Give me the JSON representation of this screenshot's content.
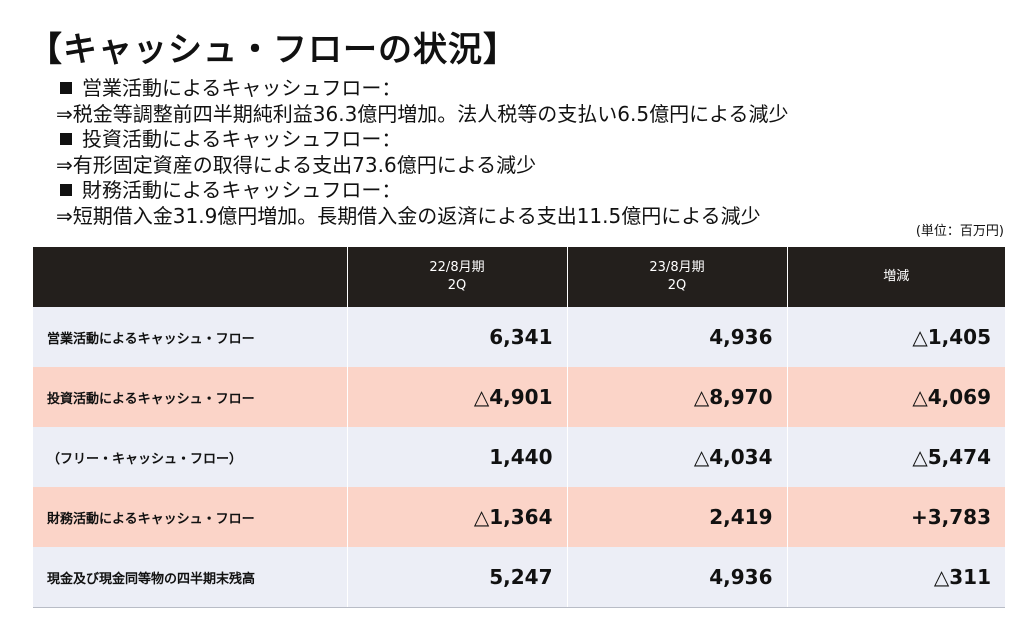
{
  "title": "【キャッシュ・フローの状況】",
  "sections": [
    {
      "heading": "営業活動によるキャッシュフロー：",
      "detail": "⇒税金等調整前四半期純利益36.3億円増加。法人税等の支払い6.5億円による減少"
    },
    {
      "heading": "投資活動によるキャッシュフロー：",
      "detail": "⇒有形固定資産の取得による支出73.6億円による減少"
    },
    {
      "heading": "財務活動によるキャッシュフロー：",
      "detail": "⇒短期借入金31.9億円増加。長期借入金の返済による支出11.5億円による減少"
    }
  ],
  "unit": "(単位：百万円)",
  "table": {
    "headers": [
      {
        "line1": "",
        "line2": ""
      },
      {
        "line1": "22/8月期",
        "line2": "2Q"
      },
      {
        "line1": "23/8月期",
        "line2": "2Q"
      },
      {
        "line1": "増減",
        "line2": ""
      }
    ],
    "rows": [
      {
        "label": "営業活動によるキャッシュ・フロー",
        "v1": "6,341",
        "v2": "4,936",
        "diff": "△1,405"
      },
      {
        "label": "投資活動によるキャッシュ・フロー",
        "v1": "△4,901",
        "v2": "△8,970",
        "diff": "△4,069"
      },
      {
        "label": "（フリー・キャッシュ・フロー）",
        "v1": "1,440",
        "v2": "△4,034",
        "diff": "△5,474"
      },
      {
        "label": "財務活動によるキャッシュ・フロー",
        "v1": "△1,364",
        "v2": "2,419",
        "diff": "+3,783"
      },
      {
        "label": "現金及び現金同等物の四半期末残高",
        "v1": "5,247",
        "v2": "4,936",
        "diff": "△311"
      }
    ]
  },
  "colors": {
    "header_bg": "#231f1c",
    "row_blue": "#eceef6",
    "row_pink": "#fbd4c8"
  }
}
